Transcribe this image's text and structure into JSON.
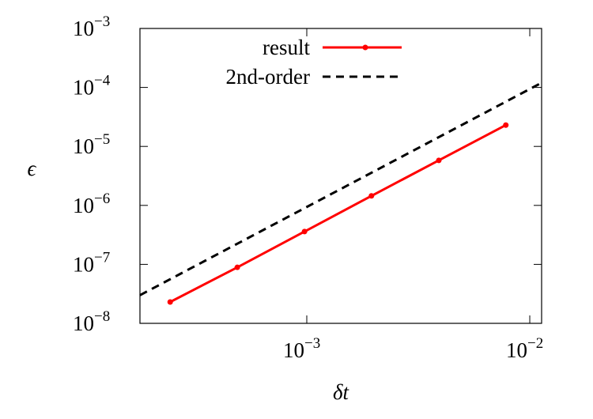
{
  "chart_data": {
    "type": "line",
    "log_x": true,
    "log_y": true,
    "x_label": "δt",
    "y_label": "ϵ",
    "xlim": [
      0.0001786,
      0.0113
    ],
    "ylim": [
      1e-08,
      0.001
    ],
    "xticks": [
      {
        "value": 0.001,
        "label": "10−3"
      },
      {
        "value": 0.01,
        "label": "10−2"
      }
    ],
    "yticks": [
      {
        "value": 1e-08,
        "label": "10−8"
      },
      {
        "value": 1e-07,
        "label": "10−7"
      },
      {
        "value": 1e-06,
        "label": "10−6"
      },
      {
        "value": 1e-05,
        "label": "10−5"
      },
      {
        "value": 0.0001,
        "label": "10−4"
      },
      {
        "value": 0.001,
        "label": "10−3"
      }
    ],
    "series": [
      {
        "name": "result",
        "color": "#ff0000",
        "dash": false,
        "markers": true,
        "x": [
          0.000244,
          0.000488,
          0.000977,
          0.00195,
          0.00391,
          0.00781
        ],
        "values": [
          2.3e-08,
          8.9e-08,
          3.6e-07,
          1.45e-06,
          5.8e-06,
          2.3e-05
        ]
      },
      {
        "name": "2nd-order",
        "color": "#000000",
        "dash": true,
        "markers": false,
        "x": [
          0.0001786,
          0.0113
        ],
        "values": [
          3e-08,
          0.00012
        ]
      }
    ]
  }
}
